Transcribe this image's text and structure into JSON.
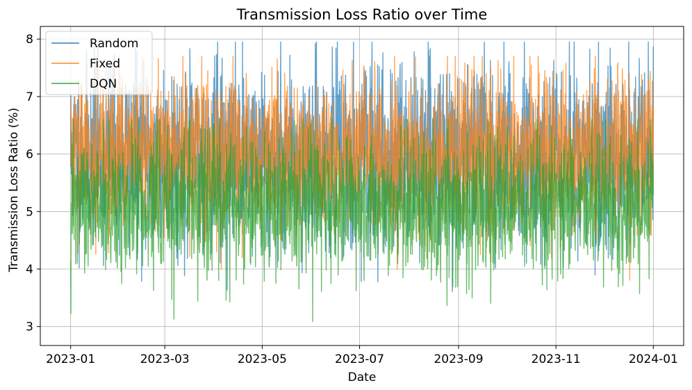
{
  "chart_data": {
    "type": "line",
    "title": "Transmission Loss Ratio over Time",
    "xlabel": "Date",
    "ylabel": "Transmission Loss Ratio (%)",
    "x_range": [
      "2023-01-01",
      "2024-01-01"
    ],
    "xlim": [
      "2022-12-13",
      "2024-01-20"
    ],
    "ylim": [
      2.67,
      8.22
    ],
    "x_ticks": [
      "2023-01",
      "2023-03",
      "2023-05",
      "2023-07",
      "2023-09",
      "2023-11",
      "2024-01"
    ],
    "y_ticks": [
      3,
      4,
      5,
      6,
      7,
      8
    ],
    "grid": true,
    "legend_position": "top-left",
    "sampling": "hourly",
    "series": [
      {
        "name": "Random",
        "color": "#1f77b4",
        "alpha": 0.7,
        "mean": 6.0,
        "typical_range": [
          4.0,
          7.3
        ],
        "min": 3.2,
        "max": 7.95
      },
      {
        "name": "Fixed",
        "color": "#ff7f0e",
        "alpha": 0.7,
        "mean": 6.0,
        "typical_range": [
          4.2,
          7.0
        ],
        "min": 3.4,
        "max": 7.7
      },
      {
        "name": "DQN",
        "color": "#2ca02c",
        "alpha": 0.7,
        "mean": 5.1,
        "typical_range": [
          3.8,
          6.3
        ],
        "min": 2.92,
        "max": 6.6
      }
    ]
  }
}
